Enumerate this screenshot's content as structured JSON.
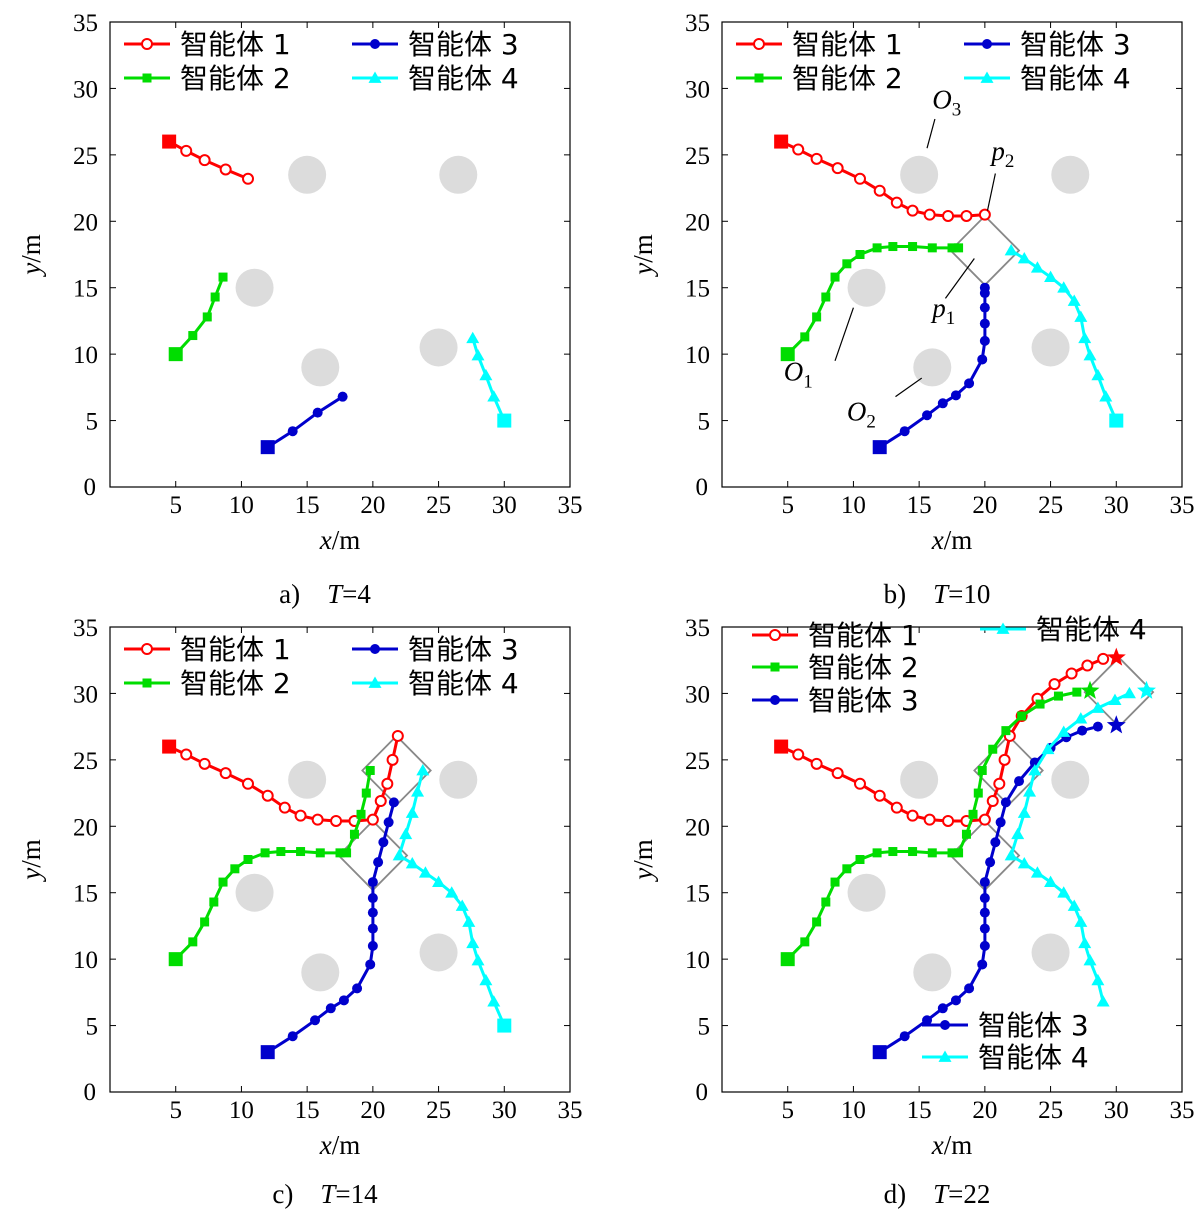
{
  "chart_data": [
    {
      "type": "line",
      "caption_letter": "a)",
      "caption_var": "T",
      "caption_value": "=4",
      "xlabel": "x",
      "xunit": "/m",
      "ylabel": "y",
      "yunit": "/m",
      "xlim": [
        0,
        35
      ],
      "ylim": [
        0,
        35
      ],
      "xticks": [
        5,
        10,
        15,
        20,
        25,
        30,
        35
      ],
      "yticks": [
        0,
        5,
        10,
        15,
        20,
        25,
        30,
        35
      ],
      "legend": {
        "layout": "2x2",
        "position": "top",
        "entries": [
          {
            "series": 0,
            "label": "智能体 1"
          },
          {
            "series": 2,
            "label": "智能体 3"
          },
          {
            "series": 1,
            "label": "智能体 2"
          },
          {
            "series": 3,
            "label": "智能体 4"
          }
        ]
      },
      "obstacles": [
        {
          "x": 15,
          "y": 23.5
        },
        {
          "x": 26.5,
          "y": 23.5
        },
        {
          "x": 11,
          "y": 15
        },
        {
          "x": 16,
          "y": 9
        },
        {
          "x": 25,
          "y": 10.5
        }
      ],
      "series": [
        {
          "name": "智能体 1",
          "color": "#ff0000",
          "marker": "circle-open",
          "x": [
            4.5,
            5.8,
            7.2,
            8.8,
            10.5
          ],
          "y": [
            26.0,
            25.3,
            24.6,
            23.9,
            23.2
          ]
        },
        {
          "name": "智能体 2",
          "color": "#00dd00",
          "marker": "square",
          "x": [
            5.0,
            6.3,
            7.4,
            8.0,
            8.6
          ],
          "y": [
            10.0,
            11.4,
            12.8,
            14.3,
            15.8
          ]
        },
        {
          "name": "智能体 3",
          "color": "#0000cc",
          "marker": "dot",
          "x": [
            12.0,
            13.9,
            15.8,
            17.7
          ],
          "y": [
            3.0,
            4.2,
            5.6,
            6.8
          ]
        },
        {
          "name": "智能体 4",
          "color": "#00ffff",
          "marker": "triangle",
          "x": [
            30.0,
            29.2,
            28.6,
            28.0,
            27.6
          ],
          "y": [
            5.0,
            6.8,
            8.4,
            9.9,
            11.2
          ]
        }
      ],
      "formations": [],
      "annotations": [],
      "final_markers": []
    },
    {
      "type": "line",
      "caption_letter": "b)",
      "caption_var": "T",
      "caption_value": "=10",
      "xlabel": "x",
      "xunit": "/m",
      "ylabel": "y",
      "yunit": "/m",
      "xlim": [
        0,
        35
      ],
      "ylim": [
        0,
        35
      ],
      "xticks": [
        5,
        10,
        15,
        20,
        25,
        30,
        35
      ],
      "yticks": [
        0,
        5,
        10,
        15,
        20,
        25,
        30,
        35
      ],
      "legend": {
        "layout": "2x2",
        "position": "top",
        "entries": [
          {
            "series": 0,
            "label": "智能体 1"
          },
          {
            "series": 2,
            "label": "智能体 3"
          },
          {
            "series": 1,
            "label": "智能体 2"
          },
          {
            "series": 3,
            "label": "智能体 4"
          }
        ]
      },
      "obstacles": [
        {
          "x": 15,
          "y": 23.5
        },
        {
          "x": 26.5,
          "y": 23.5
        },
        {
          "x": 11,
          "y": 15
        },
        {
          "x": 16,
          "y": 9
        },
        {
          "x": 25,
          "y": 10.5
        }
      ],
      "series": [
        {
          "name": "智能体 1",
          "color": "#ff0000",
          "marker": "circle-open",
          "x": [
            4.5,
            5.8,
            7.2,
            8.8,
            10.5,
            12.0,
            13.3,
            14.5,
            15.8,
            17.2,
            18.6,
            20.0
          ],
          "y": [
            26.0,
            25.4,
            24.7,
            24.0,
            23.2,
            22.3,
            21.4,
            20.8,
            20.5,
            20.4,
            20.4,
            20.5
          ]
        },
        {
          "name": "智能体 2",
          "color": "#00dd00",
          "marker": "square",
          "x": [
            5.0,
            6.3,
            7.2,
            7.9,
            8.6,
            9.5,
            10.5,
            11.8,
            13.0,
            14.5,
            16.0,
            17.5,
            18.0
          ],
          "y": [
            10.0,
            11.3,
            12.8,
            14.3,
            15.8,
            16.8,
            17.5,
            18.0,
            18.1,
            18.1,
            18.0,
            18.0,
            18.0
          ]
        },
        {
          "name": "智能体 3",
          "color": "#0000cc",
          "marker": "dot",
          "x": [
            12.0,
            13.9,
            15.6,
            16.8,
            17.8,
            18.8,
            19.8,
            20.0,
            20.0,
            20.0,
            20.0,
            20.0
          ],
          "y": [
            3.0,
            4.2,
            5.4,
            6.3,
            6.9,
            7.8,
            9.6,
            11.0,
            12.3,
            13.5,
            14.6,
            15.0
          ]
        },
        {
          "name": "智能体 4",
          "color": "#00ffff",
          "marker": "triangle",
          "x": [
            30.0,
            29.2,
            28.6,
            28.0,
            27.6,
            27.3,
            26.8,
            26.0,
            25.0,
            24.0,
            23.0,
            22.0
          ],
          "y": [
            5.0,
            6.8,
            8.4,
            9.9,
            11.2,
            12.8,
            14.0,
            15.0,
            15.8,
            16.5,
            17.2,
            17.8
          ]
        }
      ],
      "formations": [
        {
          "cx": 20.0,
          "cy": 17.8,
          "r": 2.6
        }
      ],
      "annotations": [
        {
          "text": "O",
          "sub": "3",
          "x": 16.0,
          "y": 28.5,
          "line": [
            [
              16.2,
              27.7
            ],
            [
              15.6,
              25.5
            ]
          ]
        },
        {
          "text": "p",
          "sub": "2",
          "x": 20.5,
          "y": 24.6,
          "line": [
            [
              20.8,
              23.6
            ],
            [
              20.2,
              20.8
            ]
          ]
        },
        {
          "text": "p",
          "sub": "1",
          "x": 16.0,
          "y": 12.8,
          "line": [
            [
              17.0,
              14.2
            ],
            [
              19.2,
              17.2
            ]
          ]
        },
        {
          "text": "O",
          "sub": "1",
          "x": 4.7,
          "y": 8.0,
          "line": [
            [
              8.6,
              9.5
            ],
            [
              10.0,
              13.5
            ]
          ]
        },
        {
          "text": "O",
          "sub": "2",
          "x": 9.5,
          "y": 5.0,
          "line": [
            [
              13.2,
              6.8
            ],
            [
              15.2,
              8.2
            ]
          ]
        }
      ],
      "final_markers": []
    },
    {
      "type": "line",
      "caption_letter": "c)",
      "caption_var": "T",
      "caption_value": "=14",
      "xlabel": "x",
      "xunit": "/m",
      "ylabel": "y",
      "yunit": "/m",
      "xlim": [
        0,
        35
      ],
      "ylim": [
        0,
        35
      ],
      "xticks": [
        5,
        10,
        15,
        20,
        25,
        30,
        35
      ],
      "yticks": [
        0,
        5,
        10,
        15,
        20,
        25,
        30,
        35
      ],
      "legend": {
        "layout": "2x2",
        "position": "top",
        "entries": [
          {
            "series": 0,
            "label": "智能体 1"
          },
          {
            "series": 2,
            "label": "智能体 3"
          },
          {
            "series": 1,
            "label": "智能体 2"
          },
          {
            "series": 3,
            "label": "智能体 4"
          }
        ]
      },
      "obstacles": [
        {
          "x": 15,
          "y": 23.5
        },
        {
          "x": 26.5,
          "y": 23.5
        },
        {
          "x": 11,
          "y": 15
        },
        {
          "x": 16,
          "y": 9
        },
        {
          "x": 25,
          "y": 10.5
        }
      ],
      "series": [
        {
          "name": "智能体 1",
          "color": "#ff0000",
          "marker": "circle-open",
          "x": [
            4.5,
            5.8,
            7.2,
            8.8,
            10.5,
            12.0,
            13.3,
            14.5,
            15.8,
            17.2,
            18.6,
            20.0,
            20.6,
            21.1,
            21.5,
            21.9
          ],
          "y": [
            26.0,
            25.4,
            24.7,
            24.0,
            23.2,
            22.3,
            21.4,
            20.8,
            20.5,
            20.4,
            20.4,
            20.5,
            21.9,
            23.2,
            25.0,
            26.8
          ]
        },
        {
          "name": "智能体 2",
          "color": "#00dd00",
          "marker": "square",
          "x": [
            5.0,
            6.3,
            7.2,
            7.9,
            8.6,
            9.5,
            10.5,
            11.8,
            13.0,
            14.5,
            16.0,
            17.5,
            18.0,
            18.6,
            19.1,
            19.5,
            19.8
          ],
          "y": [
            10.0,
            11.3,
            12.8,
            14.3,
            15.8,
            16.8,
            17.5,
            18.0,
            18.1,
            18.1,
            18.0,
            18.0,
            18.0,
            19.4,
            20.9,
            22.5,
            24.2
          ]
        },
        {
          "name": "智能体 3",
          "color": "#0000cc",
          "marker": "dot",
          "x": [
            12.0,
            13.9,
            15.6,
            16.8,
            17.8,
            18.8,
            19.8,
            20.0,
            20.0,
            20.0,
            20.0,
            20.0,
            20.4,
            20.8,
            21.2,
            21.6
          ],
          "y": [
            3.0,
            4.2,
            5.4,
            6.3,
            6.9,
            7.8,
            9.6,
            11.0,
            12.3,
            13.5,
            14.6,
            15.8,
            17.3,
            18.8,
            20.3,
            21.8
          ]
        },
        {
          "name": "智能体 4",
          "color": "#00ffff",
          "marker": "triangle",
          "x": [
            30.0,
            29.2,
            28.6,
            28.0,
            27.6,
            27.3,
            26.8,
            26.0,
            25.0,
            24.0,
            23.0,
            22.0,
            22.5,
            23.0,
            23.4,
            23.8
          ],
          "y": [
            5.0,
            6.8,
            8.4,
            9.9,
            11.2,
            12.8,
            14.0,
            15.0,
            15.8,
            16.5,
            17.2,
            17.8,
            19.4,
            21.0,
            22.6,
            24.2
          ]
        }
      ],
      "formations": [
        {
          "cx": 20.0,
          "cy": 17.8,
          "r": 2.6
        },
        {
          "cx": 21.8,
          "cy": 24.2,
          "r": 2.6
        }
      ],
      "annotations": [],
      "final_markers": []
    },
    {
      "type": "line",
      "caption_letter": "d)",
      "caption_var": "T",
      "caption_value": "=22",
      "xlabel": "x",
      "xunit": "/m",
      "ylabel": "y",
      "yunit": "/m",
      "xlim": [
        0,
        35
      ],
      "ylim": [
        0,
        35
      ],
      "xticks": [
        5,
        10,
        15,
        20,
        25,
        30,
        35
      ],
      "yticks": [
        0,
        5,
        10,
        15,
        20,
        25,
        30,
        35
      ],
      "legend": {
        "layout": "split",
        "position": "top-left + top-right + bottom-right",
        "entries": [
          {
            "series": 0,
            "label": "智能体 1"
          },
          {
            "series": 1,
            "label": "智能体 2"
          },
          {
            "series": 2,
            "label": "智能体 3"
          },
          {
            "series": 3,
            "label": "智能体 4"
          },
          {
            "series": 2,
            "label": "智能体 3"
          },
          {
            "series": 3,
            "label": "智能体 4"
          }
        ]
      },
      "obstacles": [
        {
          "x": 15,
          "y": 23.5
        },
        {
          "x": 26.5,
          "y": 23.5
        },
        {
          "x": 11,
          "y": 15
        },
        {
          "x": 16,
          "y": 9
        },
        {
          "x": 25,
          "y": 10.5
        }
      ],
      "series": [
        {
          "name": "智能体 1",
          "color": "#ff0000",
          "marker": "circle-open",
          "x": [
            4.5,
            5.8,
            7.2,
            8.8,
            10.5,
            12.0,
            13.3,
            14.5,
            15.8,
            17.2,
            18.6,
            20.0,
            20.6,
            21.1,
            21.5,
            21.9,
            22.8,
            24.0,
            25.3,
            26.6,
            27.8,
            29.0
          ],
          "y": [
            26.0,
            25.4,
            24.7,
            24.0,
            23.2,
            22.3,
            21.4,
            20.8,
            20.5,
            20.4,
            20.4,
            20.5,
            21.9,
            23.2,
            25.0,
            26.8,
            28.3,
            29.6,
            30.7,
            31.5,
            32.1,
            32.6
          ]
        },
        {
          "name": "智能体 2",
          "color": "#00dd00",
          "marker": "square",
          "x": [
            5.0,
            6.3,
            7.2,
            7.9,
            8.6,
            9.5,
            10.5,
            11.8,
            13.0,
            14.5,
            16.0,
            17.5,
            18.0,
            18.6,
            19.1,
            19.5,
            19.8,
            20.6,
            21.6,
            22.8,
            24.2,
            25.6,
            27.0
          ],
          "y": [
            10.0,
            11.3,
            12.8,
            14.3,
            15.8,
            16.8,
            17.5,
            18.0,
            18.1,
            18.1,
            18.0,
            18.0,
            18.0,
            19.4,
            20.9,
            22.5,
            24.2,
            25.8,
            27.2,
            28.3,
            29.2,
            29.8,
            30.1
          ]
        },
        {
          "name": "智能体 3",
          "color": "#0000cc",
          "marker": "dot",
          "x": [
            12.0,
            13.9,
            15.6,
            16.8,
            17.8,
            18.8,
            19.8,
            20.0,
            20.0,
            20.0,
            20.0,
            20.0,
            20.4,
            20.8,
            21.2,
            21.6,
            22.6,
            23.8,
            25.0,
            26.2,
            27.4,
            28.6
          ],
          "y": [
            3.0,
            4.2,
            5.4,
            6.3,
            6.9,
            7.8,
            9.6,
            11.0,
            12.3,
            13.5,
            14.6,
            15.8,
            17.3,
            18.8,
            20.3,
            21.8,
            23.4,
            24.8,
            25.9,
            26.7,
            27.2,
            27.5
          ]
        },
        {
          "name": "智能体 4",
          "color": "#00ffff",
          "marker": "triangle",
          "x": [
            29.0,
            28.6,
            28.0,
            27.6,
            27.3,
            26.8,
            26.0,
            25.0,
            24.0,
            23.0,
            22.0,
            22.5,
            23.0,
            23.4,
            23.8,
            24.8,
            26.0,
            27.3,
            28.6,
            29.9,
            31.0
          ],
          "y": [
            6.8,
            8.4,
            9.9,
            11.2,
            12.8,
            14.0,
            15.0,
            15.8,
            16.5,
            17.2,
            17.8,
            19.4,
            21.0,
            22.6,
            24.2,
            25.8,
            27.1,
            28.1,
            28.9,
            29.5,
            30.0
          ]
        }
      ],
      "formations": [
        {
          "cx": 20.0,
          "cy": 17.8,
          "r": 2.6
        },
        {
          "cx": 21.8,
          "cy": 24.2,
          "r": 2.6
        },
        {
          "cx": 30.2,
          "cy": 30.1,
          "r": 2.6
        }
      ],
      "annotations": [],
      "final_markers": [
        {
          "series": 0,
          "x": 30.0,
          "y": 32.7
        },
        {
          "series": 1,
          "x": 28.0,
          "y": 30.2
        },
        {
          "series": 2,
          "x": 30.0,
          "y": 27.6
        },
        {
          "series": 3,
          "x": 32.3,
          "y": 30.2
        }
      ]
    }
  ]
}
